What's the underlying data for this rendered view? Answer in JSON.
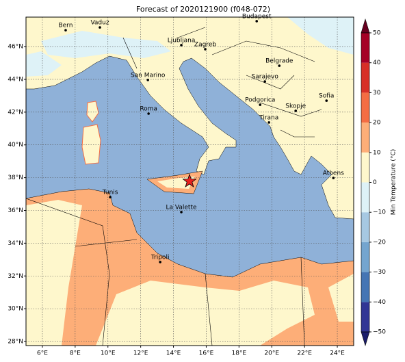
{
  "title": "Forecast of 2020121900 (f048-072)",
  "map": {
    "xlim": [
      5,
      25
    ],
    "ylim": [
      27.75,
      47.8
    ],
    "xticks": [
      {
        "value": 6,
        "label": "6°E"
      },
      {
        "value": 8,
        "label": "8°E"
      },
      {
        "value": 10,
        "label": "10°E"
      },
      {
        "value": 12,
        "label": "12°E"
      },
      {
        "value": 14,
        "label": "14°E"
      },
      {
        "value": 16,
        "label": "16°E"
      },
      {
        "value": 18,
        "label": "18°E"
      },
      {
        "value": 20,
        "label": "20°E"
      },
      {
        "value": 22,
        "label": "22°E"
      },
      {
        "value": 24,
        "label": "24°E"
      }
    ],
    "yticks": [
      {
        "value": 28,
        "label": "28°N"
      },
      {
        "value": 30,
        "label": "30°N"
      },
      {
        "value": 32,
        "label": "32°N"
      },
      {
        "value": 34,
        "label": "34°N"
      },
      {
        "value": 36,
        "label": "36°N"
      },
      {
        "value": 38,
        "label": "38°N"
      },
      {
        "value": 40,
        "label": "40°N"
      },
      {
        "value": 42,
        "label": "42°N"
      },
      {
        "value": 44,
        "label": "44°N"
      },
      {
        "value": 46,
        "label": "46°N"
      }
    ],
    "grid": true,
    "cities": [
      {
        "name": "Bern",
        "lon": 7.42,
        "lat": 47.0
      },
      {
        "name": "Vaduz",
        "lon": 9.51,
        "lat": 47.17
      },
      {
        "name": "Budapest",
        "lon": 19.08,
        "lat": 47.55
      },
      {
        "name": "Ljubljana",
        "lon": 14.48,
        "lat": 46.09
      },
      {
        "name": "Zagreb",
        "lon": 15.94,
        "lat": 45.84
      },
      {
        "name": "Belgrade",
        "lon": 20.46,
        "lat": 44.83
      },
      {
        "name": "San Marino",
        "lon": 12.44,
        "lat": 43.96
      },
      {
        "name": "Sarajevo",
        "lon": 19.58,
        "lat": 43.87
      },
      {
        "name": "Sofia",
        "lon": 23.34,
        "lat": 42.7
      },
      {
        "name": "Podgorica",
        "lon": 19.29,
        "lat": 42.45
      },
      {
        "name": "Skopje",
        "lon": 21.46,
        "lat": 42.08
      },
      {
        "name": "Roma",
        "lon": 12.48,
        "lat": 41.91
      },
      {
        "name": "Tirana",
        "lon": 19.83,
        "lat": 41.37
      },
      {
        "name": "Athens",
        "lon": 23.76,
        "lat": 37.98
      },
      {
        "name": "Tunis",
        "lon": 10.14,
        "lat": 36.81
      },
      {
        "name": "La Valette",
        "lon": 14.48,
        "lat": 35.9
      },
      {
        "name": "Tripoli",
        "lon": 13.19,
        "lat": 32.85
      }
    ],
    "star": {
      "lon": 14.98,
      "lat": 37.78,
      "color": "#e8211d"
    }
  },
  "colorbar": {
    "label": "Min Temperature (°C)",
    "lim": [
      -50,
      50
    ],
    "ticks": [
      {
        "value": -50,
        "label": "−50"
      },
      {
        "value": -40,
        "label": "−40"
      },
      {
        "value": -30,
        "label": "−30"
      },
      {
        "value": -20,
        "label": "−20"
      },
      {
        "value": -10,
        "label": "−10"
      },
      0,
      10,
      20,
      30,
      40,
      50
    ],
    "colors": [
      "#313695",
      "#4575b4",
      "#74a5cf",
      "#a6c8e2",
      "#def2f7",
      "#fef7cc",
      "#fdae78",
      "#f46d43",
      "#d73027",
      "#a50026"
    ],
    "under_color": "#1a1d6b",
    "over_color": "#67001f"
  }
}
